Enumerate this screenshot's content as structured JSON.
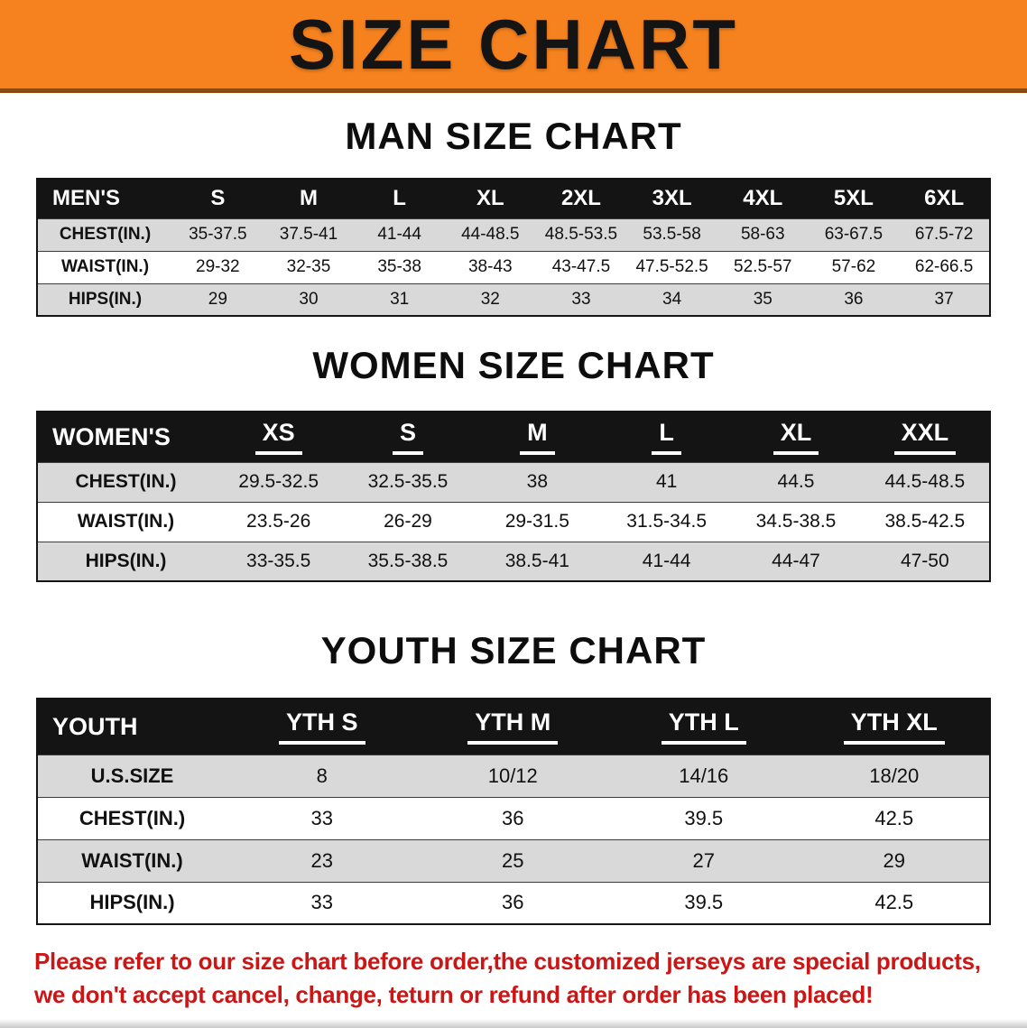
{
  "banner": {
    "title": "SIZE CHART"
  },
  "colors": {
    "banner_bg": "#f6821f",
    "header_bg": "#141414",
    "row_alt": "#d9d9d9",
    "notice_red": "#cc1616"
  },
  "sections": [
    {
      "heading": "MAN SIZE CHART",
      "table": {
        "header": [
          "MEN'S",
          "S",
          "M",
          "L",
          "XL",
          "2XL",
          "3XL",
          "4XL",
          "5XL",
          "6XL"
        ],
        "rows": [
          [
            "CHEST(IN.)",
            "35-37.5",
            "37.5-41",
            "41-44",
            "44-48.5",
            "48.5-53.5",
            "53.5-58",
            "58-63",
            "63-67.5",
            "67.5-72"
          ],
          [
            "WAIST(IN.)",
            "29-32",
            "32-35",
            "35-38",
            "38-43",
            "43-47.5",
            "47.5-52.5",
            "52.5-57",
            "57-62",
            "62-66.5"
          ],
          [
            "HIPS(IN.)",
            "29",
            "30",
            "31",
            "32",
            "33",
            "34",
            "35",
            "36",
            "37"
          ]
        ]
      }
    },
    {
      "heading": "WOMEN SIZE CHART",
      "table": {
        "header": [
          "WOMEN'S",
          "XS",
          "S",
          "M",
          "L",
          "XL",
          "XXL"
        ],
        "rows": [
          [
            "CHEST(IN.)",
            "29.5-32.5",
            "32.5-35.5",
            "38",
            "41",
            "44.5",
            "44.5-48.5"
          ],
          [
            "WAIST(IN.)",
            "23.5-26",
            "26-29",
            "29-31.5",
            "31.5-34.5",
            "34.5-38.5",
            "38.5-42.5"
          ],
          [
            "HIPS(IN.)",
            "33-35.5",
            "35.5-38.5",
            "38.5-41",
            "41-44",
            "44-47",
            "47-50"
          ]
        ]
      }
    },
    {
      "heading": "YOUTH SIZE CHART",
      "table": {
        "header": [
          "YOUTH",
          "YTH S",
          "YTH M",
          "YTH L",
          "YTH XL"
        ],
        "rows": [
          [
            "U.S.SIZE",
            "8",
            "10/12",
            "14/16",
            "18/20"
          ],
          [
            "CHEST(IN.)",
            "33",
            "36",
            "39.5",
            "42.5"
          ],
          [
            "WAIST(IN.)",
            "23",
            "25",
            "27",
            "29"
          ],
          [
            "HIPS(IN.)",
            "33",
            "36",
            "39.5",
            "42.5"
          ]
        ]
      }
    }
  ],
  "notice": {
    "lines": [
      "Please refer to our size chart before order,the customized jerseys are special products,",
      "we don't accept cancel, change, teturn or refund after order has been placed!"
    ]
  }
}
